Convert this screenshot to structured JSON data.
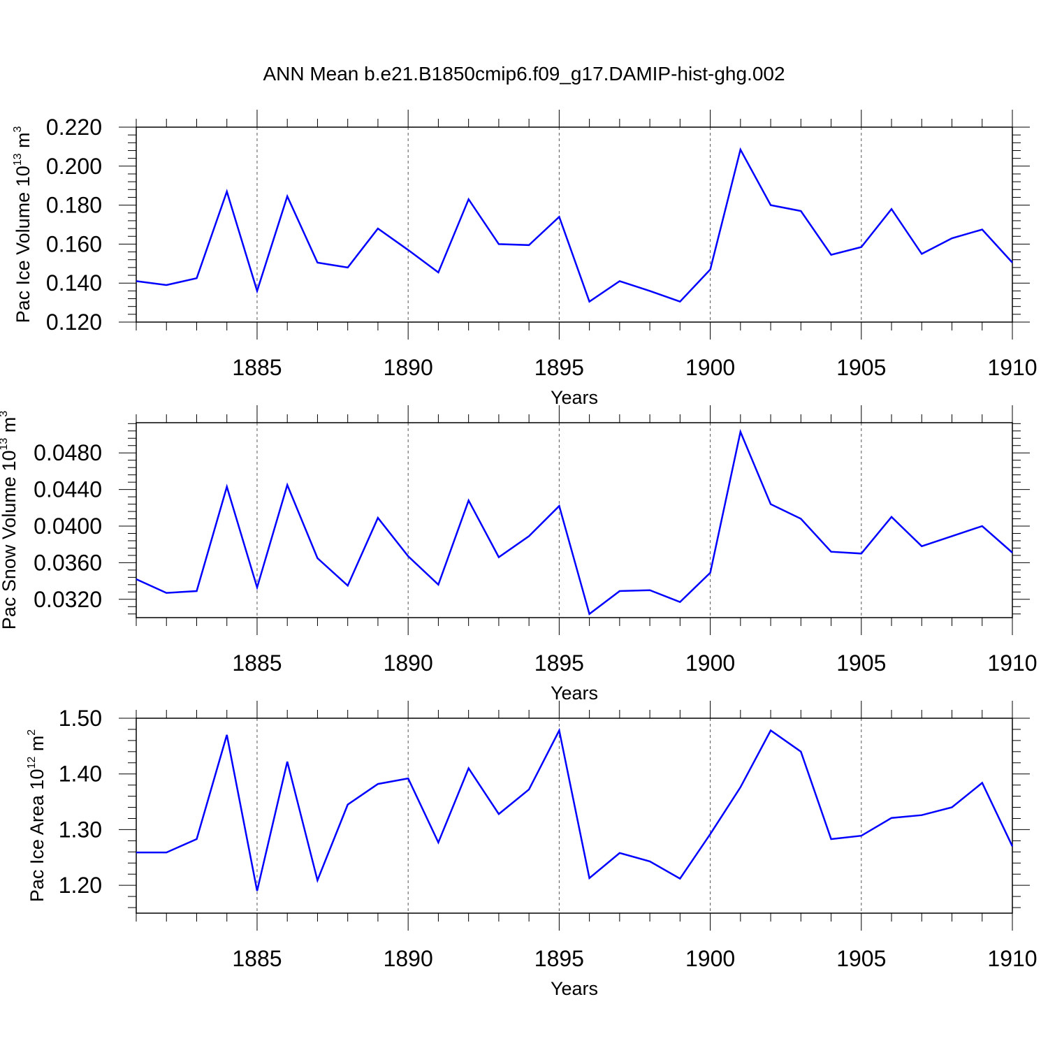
{
  "chart_data": [
    {
      "type": "line",
      "title": "ANN Mean b.e21.B1850cmip6.f09_g17.DAMIP-hist-ghg.002",
      "xlabel": "Years",
      "ylabel": {
        "text": "Pac Ice Volume 10",
        "exp": "13",
        "unit": " m",
        "unit_exp": "3"
      },
      "xlim": [
        1881,
        1910
      ],
      "ylim": [
        0.12,
        0.22
      ],
      "yticks": [
        "0.120",
        "0.140",
        "0.160",
        "0.180",
        "0.200",
        "0.220"
      ],
      "xticks": [
        "1885",
        "1890",
        "1895",
        "1900",
        "1905",
        "1910"
      ],
      "line_color": "#0000ff",
      "x": [
        1881,
        1882,
        1883,
        1884,
        1885,
        1886,
        1887,
        1888,
        1889,
        1890,
        1891,
        1892,
        1893,
        1894,
        1895,
        1896,
        1897,
        1898,
        1899,
        1900,
        1901,
        1902,
        1903,
        1904,
        1905,
        1906,
        1907,
        1908,
        1909,
        1910
      ],
      "values": [
        0.141,
        0.139,
        0.1425,
        0.187,
        0.136,
        0.1845,
        0.1505,
        0.148,
        0.168,
        0.157,
        0.1455,
        0.183,
        0.16,
        0.1595,
        0.174,
        0.1305,
        0.141,
        0.136,
        0.1305,
        0.147,
        0.2085,
        0.18,
        0.177,
        0.1545,
        0.1585,
        0.178,
        0.155,
        0.163,
        0.1675,
        0.1505
      ]
    },
    {
      "type": "line",
      "xlabel": "Years",
      "ylabel": {
        "text": "Pac Snow Volume 10",
        "exp": "13",
        "unit": " m",
        "unit_exp": "3"
      },
      "xlim": [
        1881,
        1910
      ],
      "ylim": [
        0.03,
        0.0513
      ],
      "yticks": [
        "0.0320",
        "0.0360",
        "0.0400",
        "0.0440",
        "0.0480"
      ],
      "xticks": [
        "1885",
        "1890",
        "1895",
        "1900",
        "1905",
        "1910"
      ],
      "line_color": "#0000ff",
      "x": [
        1881,
        1882,
        1883,
        1884,
        1885,
        1886,
        1887,
        1888,
        1889,
        1890,
        1891,
        1892,
        1893,
        1894,
        1895,
        1896,
        1897,
        1898,
        1899,
        1900,
        1901,
        1902,
        1903,
        1904,
        1905,
        1906,
        1907,
        1908,
        1909,
        1910
      ],
      "values": [
        0.0342,
        0.0327,
        0.0329,
        0.0443,
        0.0333,
        0.0445,
        0.0365,
        0.0335,
        0.0409,
        0.0367,
        0.0336,
        0.0428,
        0.0366,
        0.0389,
        0.0422,
        0.0304,
        0.0329,
        0.033,
        0.0317,
        0.0349,
        0.0503,
        0.0424,
        0.0408,
        0.0372,
        0.037,
        0.041,
        0.0378,
        0.0389,
        0.04,
        0.0371
      ]
    },
    {
      "type": "line",
      "xlabel": "Years",
      "ylabel": {
        "text": "Pac Ice Area 10",
        "exp": "12",
        "unit": " m",
        "unit_exp": "2"
      },
      "xlim": [
        1881,
        1910
      ],
      "ylim": [
        1.15,
        1.5
      ],
      "yticks": [
        "1.20",
        "1.30",
        "1.40",
        "1.50"
      ],
      "xticks": [
        "1885",
        "1890",
        "1895",
        "1900",
        "1905",
        "1910"
      ],
      "line_color": "#0000ff",
      "x": [
        1881,
        1882,
        1883,
        1884,
        1885,
        1886,
        1887,
        1888,
        1889,
        1890,
        1891,
        1892,
        1893,
        1894,
        1895,
        1896,
        1897,
        1898,
        1899,
        1900,
        1901,
        1902,
        1903,
        1904,
        1905,
        1906,
        1907,
        1908,
        1909,
        1910
      ],
      "values": [
        1.259,
        1.259,
        1.283,
        1.47,
        1.19,
        1.422,
        1.209,
        1.345,
        1.382,
        1.392,
        1.277,
        1.41,
        1.328,
        1.372,
        1.478,
        1.213,
        1.258,
        1.243,
        1.212,
        1.292,
        1.376,
        1.478,
        1.44,
        1.283,
        1.289,
        1.321,
        1.326,
        1.34,
        1.384,
        1.27
      ]
    }
  ]
}
